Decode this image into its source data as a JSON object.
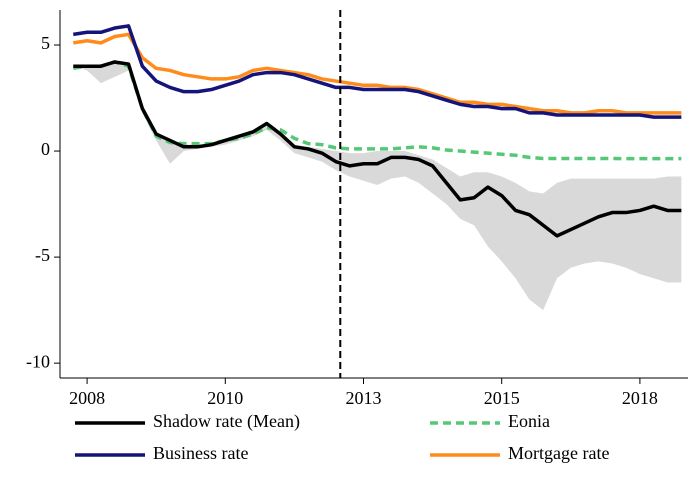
{
  "chart_data": {
    "type": "line",
    "x": [
      2007.75,
      2008.0,
      2008.25,
      2008.5,
      2008.75,
      2009.0,
      2009.25,
      2009.5,
      2009.75,
      2010.0,
      2010.25,
      2010.5,
      2010.75,
      2011.0,
      2011.25,
      2011.5,
      2011.75,
      2012.0,
      2012.25,
      2012.5,
      2012.75,
      2013.0,
      2013.25,
      2013.5,
      2013.75,
      2014.0,
      2014.25,
      2014.5,
      2014.75,
      2015.0,
      2015.25,
      2015.5,
      2015.75,
      2016.0,
      2016.25,
      2016.5,
      2016.75,
      2017.0,
      2017.25,
      2017.5,
      2017.75,
      2018.0,
      2018.25,
      2018.5,
      2018.75
    ],
    "series": [
      {
        "name": "Shadow rate (Mean)",
        "color": "#000000",
        "dash": false,
        "values": [
          4.0,
          4.0,
          4.0,
          4.2,
          4.1,
          2.0,
          0.8,
          0.5,
          0.2,
          0.2,
          0.3,
          0.5,
          0.7,
          0.9,
          1.3,
          0.8,
          0.2,
          0.1,
          -0.1,
          -0.5,
          -0.7,
          -0.6,
          -0.6,
          -0.3,
          -0.3,
          -0.4,
          -0.7,
          -1.5,
          -2.3,
          -2.2,
          -1.7,
          -2.1,
          -2.8,
          -3.0,
          -3.5,
          -4.0,
          -3.7,
          -3.4,
          -3.1,
          -2.9,
          -2.9,
          -2.8,
          -2.6,
          -2.8,
          -2.8
        ]
      },
      {
        "name": "Eonia",
        "color": "#55c877",
        "dash": true,
        "values": [
          3.9,
          4.0,
          4.0,
          4.2,
          4.0,
          2.0,
          0.7,
          0.4,
          0.35,
          0.35,
          0.35,
          0.5,
          0.6,
          0.8,
          1.1,
          1.0,
          0.6,
          0.35,
          0.3,
          0.15,
          0.1,
          0.1,
          0.1,
          0.1,
          0.15,
          0.2,
          0.15,
          0.05,
          0,
          -0.05,
          -0.1,
          -0.15,
          -0.2,
          -0.3,
          -0.35,
          -0.35,
          -0.35,
          -0.35,
          -0.35,
          -0.35,
          -0.36,
          -0.36,
          -0.36,
          -0.36,
          -0.36
        ]
      },
      {
        "name": "Business rate",
        "color": "#14147a",
        "dash": false,
        "values": [
          5.5,
          5.6,
          5.6,
          5.8,
          5.9,
          4.0,
          3.3,
          3.0,
          2.8,
          2.8,
          2.9,
          3.1,
          3.3,
          3.6,
          3.7,
          3.7,
          3.6,
          3.4,
          3.2,
          3.0,
          3.0,
          2.9,
          2.9,
          2.9,
          2.9,
          2.8,
          2.6,
          2.4,
          2.2,
          2.1,
          2.1,
          2.0,
          2.0,
          1.8,
          1.8,
          1.7,
          1.7,
          1.7,
          1.7,
          1.7,
          1.7,
          1.7,
          1.6,
          1.6,
          1.6
        ]
      },
      {
        "name": "Mortgage rate",
        "color": "#ff8c1a",
        "dash": false,
        "values": [
          5.1,
          5.2,
          5.1,
          5.4,
          5.5,
          4.4,
          3.9,
          3.8,
          3.6,
          3.5,
          3.4,
          3.4,
          3.5,
          3.8,
          3.9,
          3.8,
          3.7,
          3.6,
          3.4,
          3.3,
          3.2,
          3.1,
          3.1,
          3.0,
          3.0,
          2.9,
          2.7,
          2.5,
          2.3,
          2.3,
          2.2,
          2.2,
          2.1,
          2.0,
          1.9,
          1.9,
          1.8,
          1.8,
          1.9,
          1.9,
          1.8,
          1.8,
          1.8,
          1.8,
          1.8
        ]
      }
    ],
    "band": {
      "color": "#d9d9d9",
      "lower": [
        4.0,
        3.8,
        3.2,
        3.5,
        3.8,
        1.8,
        0.5,
        -0.6,
        0.0,
        0.1,
        0.2,
        0.3,
        0.5,
        0.7,
        1.0,
        0.5,
        -0.1,
        -0.3,
        -0.5,
        -0.9,
        -1.2,
        -1.4,
        -1.6,
        -1.3,
        -1.2,
        -1.5,
        -2.0,
        -2.5,
        -3.2,
        -3.5,
        -4.5,
        -5.2,
        -6.0,
        -7.0,
        -7.5,
        -6.0,
        -5.5,
        -5.3,
        -5.2,
        -5.3,
        -5.5,
        -5.8,
        -6.0,
        -6.2,
        -6.2
      ],
      "upper": [
        4.0,
        4.0,
        4.1,
        4.2,
        4.2,
        2.2,
        0.9,
        0.5,
        0.3,
        0.3,
        0.4,
        0.6,
        0.8,
        1.0,
        1.3,
        0.9,
        0.3,
        0.2,
        0.1,
        0.0,
        -0.1,
        -0.1,
        0.0,
        0.0,
        0.0,
        -0.2,
        -0.4,
        -0.8,
        -1.2,
        -1.0,
        -1.0,
        -1.2,
        -1.5,
        -1.9,
        -2.0,
        -1.5,
        -1.3,
        -1.3,
        -1.3,
        -1.3,
        -1.3,
        -1.3,
        -1.3,
        -1.2,
        -1.2
      ]
    },
    "vline": 2012.58,
    "xlim": [
      2007.51,
      2018.87
    ],
    "ylim": [
      -10.7,
      6.65
    ],
    "xticks": [
      2008,
      {
        "value": 2010.5,
        "label": "2010"
      },
      2013,
      {
        "value": 2015.5,
        "label": "2015"
      },
      2018
    ],
    "yticks": [
      5,
      0,
      -5,
      -10
    ],
    "grid": false
  }
}
